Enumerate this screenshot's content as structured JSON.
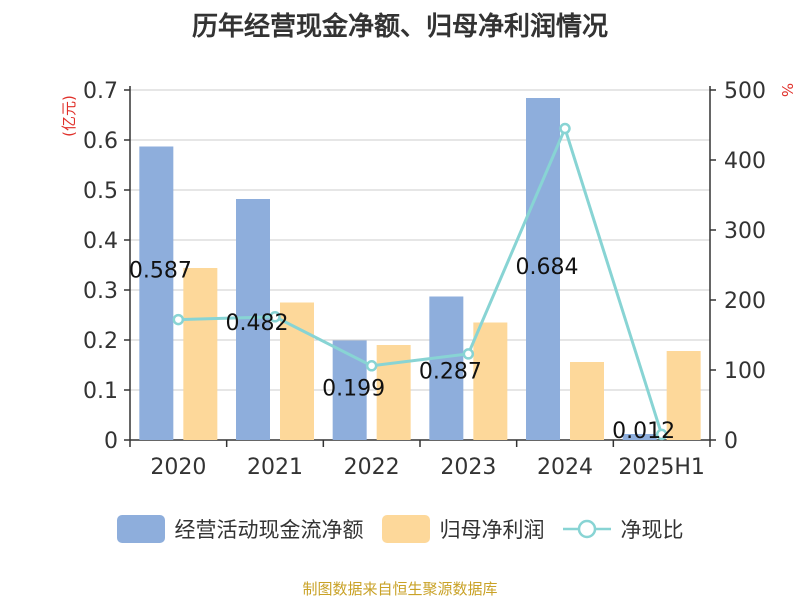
{
  "colors": {
    "cashflow": "#8eaedc",
    "netprofit": "#fdd89a",
    "ratio": "#88d4d4",
    "axis": "#333333",
    "grid": "#cccccc",
    "unit": "#e0302a",
    "footer": "#c9a227"
  },
  "chart_data": {
    "type": "bar",
    "title": "历年经营现金净额、归母净利润情况",
    "categories": [
      "2020",
      "2021",
      "2022",
      "2023",
      "2024",
      "2025H1"
    ],
    "left_axis": {
      "unit": "(亿元)",
      "ticks": [
        "0",
        "0.1",
        "0.2",
        "0.3",
        "0.4",
        "0.5",
        "0.6",
        "0.7"
      ],
      "ylim": [
        0,
        0.7
      ]
    },
    "right_axis": {
      "unit": "%",
      "ticks": [
        "0",
        "100",
        "200",
        "300",
        "400",
        "500"
      ],
      "ylim": [
        0,
        500
      ]
    },
    "series": [
      {
        "name": "经营活动现金流净额",
        "kind": "bar",
        "axis": "left",
        "values": [
          0.587,
          0.482,
          0.199,
          0.287,
          0.684,
          0.012
        ],
        "labels": [
          "0.587",
          "0.482",
          "0.199",
          "0.287",
          "0.684",
          "0.012"
        ]
      },
      {
        "name": "归母净利润",
        "kind": "bar",
        "axis": "left",
        "values": [
          0.344,
          0.275,
          0.19,
          0.235,
          0.156,
          0.178
        ]
      },
      {
        "name": "净现比",
        "kind": "line",
        "axis": "right",
        "values": [
          172,
          176,
          106,
          123,
          445,
          8
        ]
      }
    ],
    "grid": true,
    "legend": "bottom"
  },
  "footer": "制图数据来自恒生聚源数据库"
}
